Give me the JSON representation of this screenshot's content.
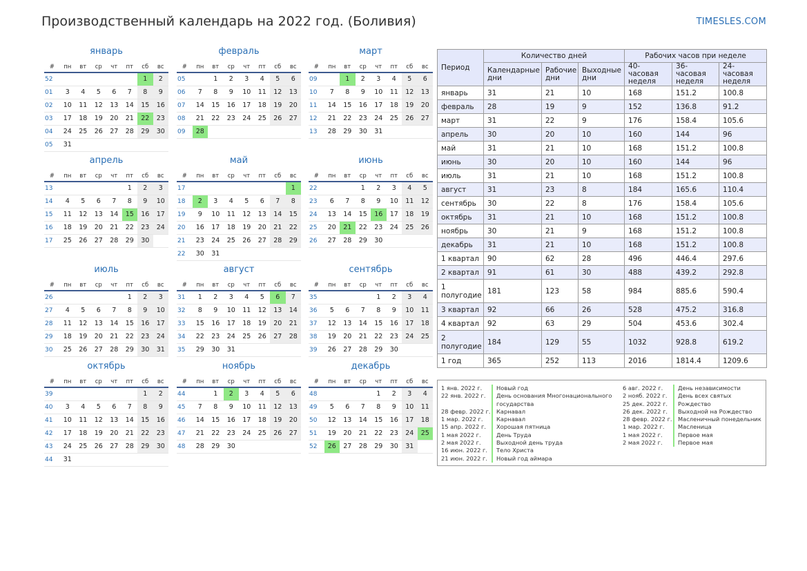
{
  "title": "Производственный календарь на 2022 год. (Боливия)",
  "brand": "TIMESLES.COM",
  "weekday_header": [
    "#",
    "пн",
    "вт",
    "ср",
    "чт",
    "пт",
    "сб",
    "вс"
  ],
  "months": [
    {
      "name": "январь",
      "rows": [
        [
          "52",
          "",
          "",
          "",
          "",
          "",
          "1",
          "2"
        ],
        [
          "01",
          "3",
          "4",
          "5",
          "6",
          "7",
          "8",
          "9"
        ],
        [
          "02",
          "10",
          "11",
          "12",
          "13",
          "14",
          "15",
          "16"
        ],
        [
          "03",
          "17",
          "18",
          "19",
          "20",
          "21",
          "22",
          "23"
        ],
        [
          "04",
          "24",
          "25",
          "26",
          "27",
          "28",
          "29",
          "30"
        ],
        [
          "05",
          "31",
          "",
          "",
          "",
          "",
          "",
          ""
        ]
      ],
      "holidays": [
        "1",
        "22"
      ]
    },
    {
      "name": "февраль",
      "rows": [
        [
          "05",
          "",
          "1",
          "2",
          "3",
          "4",
          "5",
          "6"
        ],
        [
          "06",
          "7",
          "8",
          "9",
          "10",
          "11",
          "12",
          "13"
        ],
        [
          "07",
          "14",
          "15",
          "16",
          "17",
          "18",
          "19",
          "20"
        ],
        [
          "08",
          "21",
          "22",
          "23",
          "24",
          "25",
          "26",
          "27"
        ],
        [
          "09",
          "28",
          "",
          "",
          "",
          "",
          "",
          ""
        ]
      ],
      "holidays": [
        "28"
      ]
    },
    {
      "name": "март",
      "rows": [
        [
          "09",
          "",
          "1",
          "2",
          "3",
          "4",
          "5",
          "6"
        ],
        [
          "10",
          "7",
          "8",
          "9",
          "10",
          "11",
          "12",
          "13"
        ],
        [
          "11",
          "14",
          "15",
          "16",
          "17",
          "18",
          "19",
          "20"
        ],
        [
          "12",
          "21",
          "22",
          "23",
          "24",
          "25",
          "26",
          "27"
        ],
        [
          "13",
          "28",
          "29",
          "30",
          "31",
          "",
          "",
          ""
        ]
      ],
      "holidays": [
        "1"
      ]
    },
    {
      "name": "апрель",
      "rows": [
        [
          "13",
          "",
          "",
          "",
          "",
          "1",
          "2",
          "3"
        ],
        [
          "14",
          "4",
          "5",
          "6",
          "7",
          "8",
          "9",
          "10"
        ],
        [
          "15",
          "11",
          "12",
          "13",
          "14",
          "15",
          "16",
          "17"
        ],
        [
          "16",
          "18",
          "19",
          "20",
          "21",
          "22",
          "23",
          "24"
        ],
        [
          "17",
          "25",
          "26",
          "27",
          "28",
          "29",
          "30",
          ""
        ]
      ],
      "holidays": [
        "15"
      ]
    },
    {
      "name": "май",
      "rows": [
        [
          "17",
          "",
          "",
          "",
          "",
          "",
          "",
          "1"
        ],
        [
          "18",
          "2",
          "3",
          "4",
          "5",
          "6",
          "7",
          "8"
        ],
        [
          "19",
          "9",
          "10",
          "11",
          "12",
          "13",
          "14",
          "15"
        ],
        [
          "20",
          "16",
          "17",
          "18",
          "19",
          "20",
          "21",
          "22"
        ],
        [
          "21",
          "23",
          "24",
          "25",
          "26",
          "27",
          "28",
          "29"
        ],
        [
          "22",
          "30",
          "31",
          "",
          "",
          "",
          "",
          ""
        ]
      ],
      "holidays": [
        "1",
        "2"
      ]
    },
    {
      "name": "июнь",
      "rows": [
        [
          "22",
          "",
          "",
          "1",
          "2",
          "3",
          "4",
          "5"
        ],
        [
          "23",
          "6",
          "7",
          "8",
          "9",
          "10",
          "11",
          "12"
        ],
        [
          "24",
          "13",
          "14",
          "15",
          "16",
          "17",
          "18",
          "19"
        ],
        [
          "25",
          "20",
          "21",
          "22",
          "23",
          "24",
          "25",
          "26"
        ],
        [
          "26",
          "27",
          "28",
          "29",
          "30",
          "",
          "",
          ""
        ]
      ],
      "holidays": [
        "16",
        "21"
      ]
    },
    {
      "name": "июль",
      "rows": [
        [
          "26",
          "",
          "",
          "",
          "",
          "1",
          "2",
          "3"
        ],
        [
          "27",
          "4",
          "5",
          "6",
          "7",
          "8",
          "9",
          "10"
        ],
        [
          "28",
          "11",
          "12",
          "13",
          "14",
          "15",
          "16",
          "17"
        ],
        [
          "29",
          "18",
          "19",
          "20",
          "21",
          "22",
          "23",
          "24"
        ],
        [
          "30",
          "25",
          "26",
          "27",
          "28",
          "29",
          "30",
          "31"
        ]
      ],
      "holidays": []
    },
    {
      "name": "август",
      "rows": [
        [
          "31",
          "1",
          "2",
          "3",
          "4",
          "5",
          "6",
          "7"
        ],
        [
          "32",
          "8",
          "9",
          "10",
          "11",
          "12",
          "13",
          "14"
        ],
        [
          "33",
          "15",
          "16",
          "17",
          "18",
          "19",
          "20",
          "21"
        ],
        [
          "34",
          "22",
          "23",
          "24",
          "25",
          "26",
          "27",
          "28"
        ],
        [
          "35",
          "29",
          "30",
          "31",
          "",
          "",
          "",
          ""
        ]
      ],
      "holidays": [
        "6"
      ]
    },
    {
      "name": "сентябрь",
      "rows": [
        [
          "35",
          "",
          "",
          "",
          "1",
          "2",
          "3",
          "4"
        ],
        [
          "36",
          "5",
          "6",
          "7",
          "8",
          "9",
          "10",
          "11"
        ],
        [
          "37",
          "12",
          "13",
          "14",
          "15",
          "16",
          "17",
          "18"
        ],
        [
          "38",
          "19",
          "20",
          "21",
          "22",
          "23",
          "24",
          "25"
        ],
        [
          "39",
          "26",
          "27",
          "28",
          "29",
          "30",
          "",
          ""
        ]
      ],
      "holidays": []
    },
    {
      "name": "октябрь",
      "rows": [
        [
          "39",
          "",
          "",
          "",
          "",
          "",
          "1",
          "2"
        ],
        [
          "40",
          "3",
          "4",
          "5",
          "6",
          "7",
          "8",
          "9"
        ],
        [
          "41",
          "10",
          "11",
          "12",
          "13",
          "14",
          "15",
          "16"
        ],
        [
          "42",
          "17",
          "18",
          "19",
          "20",
          "21",
          "22",
          "23"
        ],
        [
          "43",
          "24",
          "25",
          "26",
          "27",
          "28",
          "29",
          "30"
        ],
        [
          "44",
          "31",
          "",
          "",
          "",
          "",
          "",
          ""
        ]
      ],
      "holidays": []
    },
    {
      "name": "ноябрь",
      "rows": [
        [
          "44",
          "",
          "1",
          "2",
          "3",
          "4",
          "5",
          "6"
        ],
        [
          "45",
          "7",
          "8",
          "9",
          "10",
          "11",
          "12",
          "13"
        ],
        [
          "46",
          "14",
          "15",
          "16",
          "17",
          "18",
          "19",
          "20"
        ],
        [
          "47",
          "21",
          "22",
          "23",
          "24",
          "25",
          "26",
          "27"
        ],
        [
          "48",
          "28",
          "29",
          "30",
          "",
          "",
          "",
          ""
        ]
      ],
      "holidays": [
        "2"
      ]
    },
    {
      "name": "декабрь",
      "rows": [
        [
          "48",
          "",
          "",
          "",
          "1",
          "2",
          "3",
          "4"
        ],
        [
          "49",
          "5",
          "6",
          "7",
          "8",
          "9",
          "10",
          "11"
        ],
        [
          "50",
          "12",
          "13",
          "14",
          "15",
          "16",
          "17",
          "18"
        ],
        [
          "51",
          "19",
          "20",
          "21",
          "22",
          "23",
          "24",
          "25"
        ],
        [
          "52",
          "26",
          "27",
          "28",
          "29",
          "30",
          "31",
          ""
        ]
      ],
      "holidays": [
        "25",
        "26"
      ]
    }
  ],
  "stats": {
    "header": {
      "period": "Период",
      "days_group": "Количество дней",
      "hours_group": "Рабочих часов при неделе",
      "cols": [
        "Календарные дни",
        "Рабочие дни",
        "Выходные дни",
        "40-часовая неделя",
        "36-часовая неделя",
        "24-часовая неделя"
      ]
    },
    "rows": [
      [
        "январь",
        "31",
        "21",
        "10",
        "168",
        "151.2",
        "100.8"
      ],
      [
        "февраль",
        "28",
        "19",
        "9",
        "152",
        "136.8",
        "91.2"
      ],
      [
        "март",
        "31",
        "22",
        "9",
        "176",
        "158.4",
        "105.6"
      ],
      [
        "апрель",
        "30",
        "20",
        "10",
        "160",
        "144",
        "96"
      ],
      [
        "май",
        "31",
        "21",
        "10",
        "168",
        "151.2",
        "100.8"
      ],
      [
        "июнь",
        "30",
        "20",
        "10",
        "160",
        "144",
        "96"
      ],
      [
        "июль",
        "31",
        "21",
        "10",
        "168",
        "151.2",
        "100.8"
      ],
      [
        "август",
        "31",
        "23",
        "8",
        "184",
        "165.6",
        "110.4"
      ],
      [
        "сентябрь",
        "30",
        "22",
        "8",
        "176",
        "158.4",
        "105.6"
      ],
      [
        "октябрь",
        "31",
        "21",
        "10",
        "168",
        "151.2",
        "100.8"
      ],
      [
        "ноябрь",
        "30",
        "21",
        "9",
        "168",
        "151.2",
        "100.8"
      ],
      [
        "декабрь",
        "31",
        "21",
        "10",
        "168",
        "151.2",
        "100.8"
      ],
      [
        "1 квартал",
        "90",
        "62",
        "28",
        "496",
        "446.4",
        "297.6"
      ],
      [
        "2 квартал",
        "91",
        "61",
        "30",
        "488",
        "439.2",
        "292.8"
      ],
      [
        "1 полугодие",
        "181",
        "123",
        "58",
        "984",
        "885.6",
        "590.4"
      ],
      [
        "3 квартал",
        "92",
        "66",
        "26",
        "528",
        "475.2",
        "316.8"
      ],
      [
        "4 квартал",
        "92",
        "63",
        "29",
        "504",
        "453.6",
        "302.4"
      ],
      [
        "2 полугодие",
        "184",
        "129",
        "55",
        "1032",
        "928.8",
        "619.2"
      ],
      [
        "1 год",
        "365",
        "252",
        "113",
        "2016",
        "1814.4",
        "1209.6"
      ]
    ]
  },
  "holidays_list": {
    "left": [
      {
        "date": "1 янв. 2022 г.",
        "name": "Новый год"
      },
      {
        "date": "22 янв. 2022 г.",
        "name": "День основания Многонационального государства"
      },
      {
        "date": "28 февр. 2022 г.",
        "name": "Карнавал"
      },
      {
        "date": "1 мар. 2022 г.",
        "name": "Карнавал"
      },
      {
        "date": "15 апр. 2022 г.",
        "name": "Хорошая пятница"
      },
      {
        "date": "1 мая 2022 г.",
        "name": "День Труда"
      },
      {
        "date": "2 мая 2022 г.",
        "name": "Выходной день труда"
      },
      {
        "date": "16 июн. 2022 г.",
        "name": "Тело Христа"
      },
      {
        "date": "21 июн. 2022 г.",
        "name": "Новый год аймара"
      }
    ],
    "right": [
      {
        "date": "6 авг. 2022 г.",
        "name": "День независимости"
      },
      {
        "date": "2 нояб. 2022 г.",
        "name": "День всех святых"
      },
      {
        "date": "25 дек. 2022 г.",
        "name": "Рождество"
      },
      {
        "date": "26 дек. 2022 г.",
        "name": "Выходной на Рождество"
      },
      {
        "date": "28 февр. 2022 г.",
        "name": "Масленичный понедельник"
      },
      {
        "date": "1 мар. 2022 г.",
        "name": "Масленица"
      },
      {
        "date": "1 мая 2022 г.",
        "name": "Первое мая"
      },
      {
        "date": "2 мая 2022 г.",
        "name": "Первое мая"
      }
    ]
  }
}
